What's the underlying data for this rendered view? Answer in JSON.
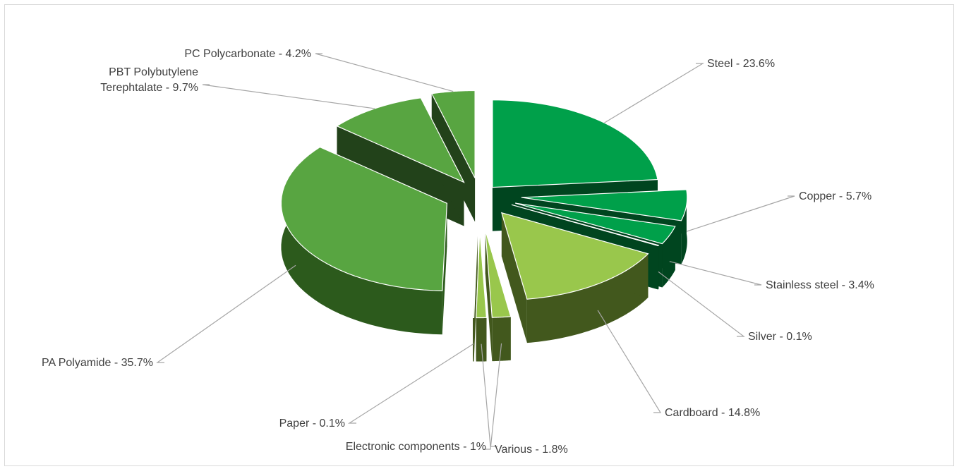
{
  "chart_data": {
    "type": "pie",
    "style": "3d-exploded",
    "title": "",
    "slices": [
      {
        "label": "Steel",
        "value": 23.6,
        "display": "Steel - 23.6%",
        "color": "#00a04a",
        "side": "#00451f"
      },
      {
        "label": "Copper",
        "value": 5.7,
        "display": "Copper - 5.7%",
        "color": "#00a04a",
        "side": "#00451f"
      },
      {
        "label": "Stainless steel",
        "value": 3.4,
        "display": "Stainless steel - 3.4%",
        "color": "#00a04a",
        "side": "#00451f"
      },
      {
        "label": "Silver",
        "value": 0.1,
        "display": "Silver - 0.1%",
        "color": "#00a04a",
        "side": "#00451f"
      },
      {
        "label": "Cardboard",
        "value": 14.8,
        "display": "Cardboard - 14.8%",
        "color": "#99c74c",
        "side": "#42581d"
      },
      {
        "label": "Various",
        "value": 1.8,
        "display": "Various - 1.8%",
        "color": "#99c74c",
        "side": "#42581d"
      },
      {
        "label": "Electronic components",
        "value": 1,
        "display": "Electronic components - 1%",
        "color": "#99c74c",
        "side": "#42581d"
      },
      {
        "label": "Paper",
        "value": 0.1,
        "display": "Paper - 0.1%",
        "color": "#99c74c",
        "side": "#42581d"
      },
      {
        "label": "PA Polyamide",
        "value": 35.7,
        "display": "PA Polyamide - 35.7%",
        "color": "#58a541",
        "side": "#2c5a1c"
      },
      {
        "label": "PBT Polybutylene Terephtalate",
        "value": 9.7,
        "display": [
          "PBT Polybutylene",
          "Terephtalate - 9.7%"
        ],
        "color": "#58a541",
        "side": "#22421a"
      },
      {
        "label": "PC Polycarbonate",
        "value": 4.2,
        "display": "PC Polycarbonate - 4.2%",
        "color": "#58a541",
        "side": "#22421a"
      }
    ],
    "legend": "none",
    "data_labels": "outside with leader lines"
  }
}
